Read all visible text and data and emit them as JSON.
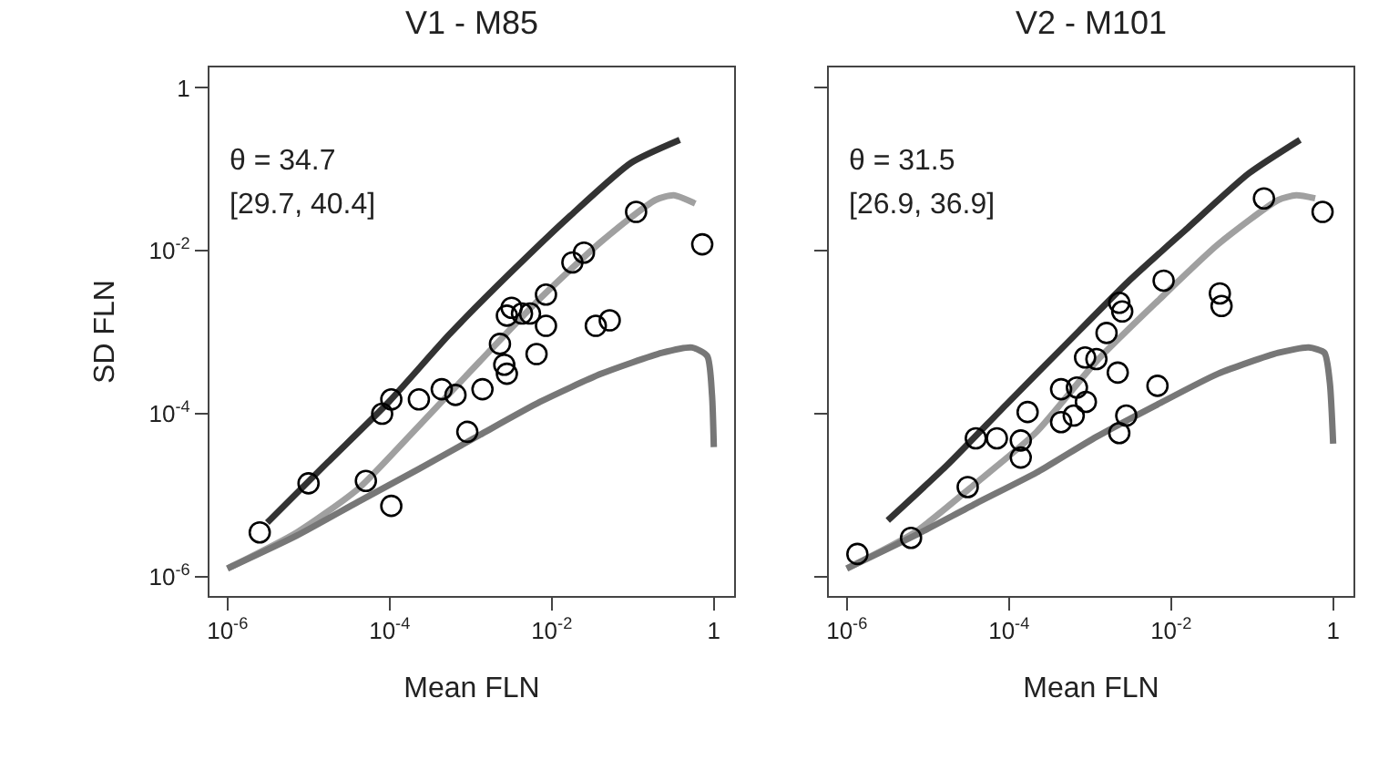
{
  "chart_data": [
    {
      "type": "scatter",
      "title": "V1 - M85",
      "xlabel": "Mean FLN",
      "ylabel": "SD FLN",
      "log": "xy",
      "grid": false,
      "legend": false,
      "marker": "circle",
      "xlim": [
        6e-07,
        1.78
      ],
      "ylim": [
        5.8e-07,
        1.78
      ],
      "xticks": [
        {
          "value": 1e-06,
          "label": "10$^{-6}$"
        },
        {
          "value": 0.0001,
          "label": "10$^{-4}$"
        },
        {
          "value": 0.01,
          "label": "10$^{-2}$"
        },
        1
      ],
      "yticks": [
        {
          "value": 1e-06,
          "label": "10$^{-6}$"
        },
        {
          "value": 0.0001,
          "label": "10$^{-4}$"
        },
        {
          "value": 0.01,
          "label": "10$^{-2}$"
        },
        1
      ],
      "annotations": [
        "θ = 34.7",
        "[29.7, 40.4]"
      ],
      "series": [
        {
          "type": "line",
          "marker": "none",
          "color": "#333333",
          "line_style": "solid",
          "x": [
            3.1e-06,
            1.7e-05,
            9.8e-05,
            0.00054,
            0.003,
            0.017,
            0.095,
            0.38
          ],
          "values": [
            4.6e-06,
            2.5e-05,
            0.00014,
            0.00093,
            0.0052,
            0.027,
            0.12,
            0.23
          ]
        },
        {
          "type": "line",
          "marker": "none",
          "color": "#a0a0a0",
          "line_style": "solid",
          "x": [
            1e-06,
            7.2e-06,
            4.1e-05,
            0.00023,
            0.0013,
            0.0072,
            0.041,
            0.19,
            0.32,
            0.59
          ],
          "values": [
            1.26e-06,
            3.5e-06,
            1.2e-05,
            7.1e-05,
            0.00044,
            0.0026,
            0.013,
            0.042,
            0.048,
            0.038
          ]
        },
        {
          "type": "line",
          "marker": "none",
          "color": "#777777",
          "line_style": "solid",
          "x": [
            1e-06,
            7.2e-06,
            4.1e-05,
            0.00023,
            0.0013,
            0.0072,
            0.041,
            0.23,
            0.54,
            0.83,
            0.95,
            1.0
          ],
          "values": [
            1.26e-06,
            3.2e-06,
            8.3e-06,
            2.1e-05,
            5.5e-05,
            0.00014,
            0.00031,
            0.00056,
            0.00065,
            0.00051,
            0.00017,
            3.9e-05
          ]
        },
        {
          "color": "#000000",
          "x": [
            2.5e-06,
            1e-05,
            5.1e-05,
            0.000105,
            8.1e-05,
            0.000105,
            0.00023,
            0.00044,
            0.00065,
            0.00091,
            0.0014,
            0.0023,
            0.0026,
            0.0028,
            0.0028,
            0.0032,
            0.0043,
            0.0054,
            0.0065,
            0.0085,
            0.0085,
            0.018,
            0.025,
            0.035,
            0.052,
            0.11,
            0.72
          ],
          "values": [
            3.5e-06,
            1.4e-05,
            1.5e-05,
            7.4e-06,
            0.0001,
            0.00015,
            0.00015,
            0.0002,
            0.00017,
            6e-05,
            0.0002,
            0.00072,
            0.0004,
            0.00031,
            0.0016,
            0.002,
            0.0017,
            0.0017,
            0.00054,
            0.0029,
            0.0012,
            0.0072,
            0.0095,
            0.0012,
            0.0014,
            0.03,
            0.012
          ]
        }
      ]
    },
    {
      "type": "scatter",
      "title": "V2 - M101",
      "xlabel": "Mean FLN",
      "log": "xy",
      "grid": false,
      "legend": false,
      "marker": "circle",
      "tick_labels": "x",
      "xlim": [
        6e-07,
        1.78
      ],
      "ylim": [
        5.8e-07,
        1.78
      ],
      "xticks": [
        {
          "value": 1e-06,
          "label": "10$^{-6}$"
        },
        {
          "value": 0.0001,
          "label": "10$^{-4}$"
        },
        {
          "value": 0.01,
          "label": "10$^{-2}$"
        },
        1
      ],
      "yticks": [
        {
          "value": 1e-06,
          "label": null
        },
        {
          "value": 0.0001,
          "label": null
        },
        {
          "value": 0.01,
          "label": null
        },
        {
          "value": 1,
          "label": null
        }
      ],
      "annotations": [
        "θ = 31.5",
        "[26.9, 36.9]"
      ],
      "series": [
        {
          "type": "line",
          "marker": "none",
          "color": "#333333",
          "line_style": "solid",
          "x": [
            3.2e-06,
            1.7e-05,
            9.3e-05,
            0.00051,
            0.0029,
            0.016,
            0.091,
            0.39
          ],
          "values": [
            4.9e-06,
            2.3e-05,
            0.00013,
            0.00072,
            0.0041,
            0.019,
            0.089,
            0.23
          ]
        },
        {
          "type": "line",
          "marker": "none",
          "color": "#a0a0a0",
          "line_style": "solid",
          "x": [
            1e-06,
            6.9e-06,
            3.9e-05,
            0.00022,
            0.0012,
            0.0068,
            0.038,
            0.21,
            0.35,
            0.6
          ],
          "values": [
            1.26e-06,
            3.5e-06,
            1.4e-05,
            6e-05,
            0.00044,
            0.0024,
            0.012,
            0.042,
            0.048,
            0.044
          ]
        },
        {
          "type": "line",
          "marker": "none",
          "color": "#777777",
          "line_style": "solid",
          "x": [
            1e-06,
            6.9e-06,
            3.9e-05,
            0.00022,
            0.0012,
            0.0068,
            0.038,
            0.21,
            0.5,
            0.78,
            0.91,
            1.0
          ],
          "values": [
            1.26e-06,
            3.2e-06,
            7.9e-06,
            1.9e-05,
            5.2e-05,
            0.00013,
            0.00031,
            0.00056,
            0.00065,
            0.00056,
            0.00024,
            4.3e-05
          ]
        },
        {
          "color": "#000000",
          "x": [
            1.35e-06,
            6.2e-06,
            3.1e-05,
            3.9e-05,
            7.1e-05,
            0.00014,
            0.00014,
            0.00017,
            0.00044,
            0.00044,
            0.00063,
            0.00069,
            0.00089,
            0.00087,
            0.0012,
            0.0016,
            0.0022,
            0.0023,
            0.0025,
            0.0028,
            0.0023,
            0.0068,
            0.0081,
            0.04,
            0.042,
            0.14,
            0.74
          ],
          "values": [
            1.9e-06,
            3e-06,
            1.26e-05,
            5e-05,
            5e-05,
            4.7e-05,
            2.9e-05,
            0.000105,
            0.0002,
            7.9e-05,
            9.5e-05,
            0.00021,
            0.00014,
            0.00049,
            0.00047,
            0.00098,
            0.00032,
            0.0023,
            0.0018,
            9.5e-05,
            5.8e-05,
            0.00022,
            0.0043,
            0.003,
            0.0021,
            0.044,
            0.03
          ]
        }
      ]
    }
  ]
}
